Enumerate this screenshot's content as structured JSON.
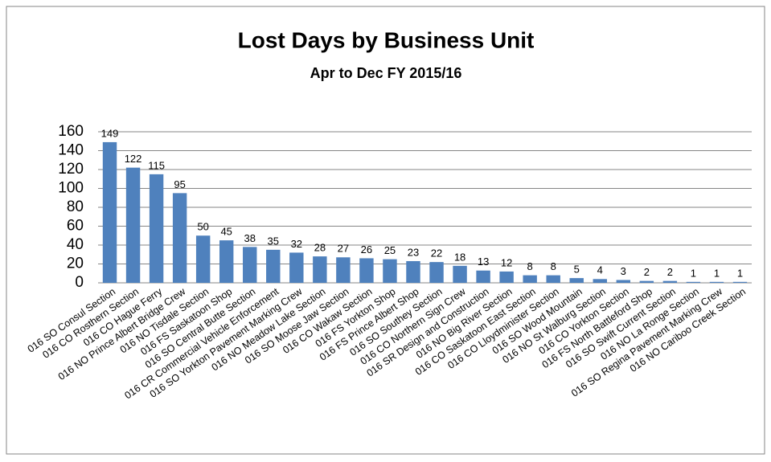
{
  "chart_data": {
    "type": "bar",
    "title": "Lost Days by Business Unit",
    "subtitle": "Apr to Dec FY 2015/16",
    "categories": [
      "016 SO Consul Section",
      "016 CO Rosthern Section",
      "016 CO Hague Ferry",
      "016 NO Prince Albert Bridge Crew",
      "016 NO Tisdale Section",
      "016 FS Saskatoon Shop",
      "016 SO Central Butte Section",
      "016 CR Commercial Vehicle Enforcement",
      "016 SO Yorkton Pavement Marking Crew",
      "016 NO Meadow Lake Section",
      "016 SO Moose Jaw Section",
      "016 CO Wakaw Section",
      "016 FS Yorkton Shop",
      "016 FS Prince Albert Shop",
      "016 SO Southey Section",
      "016 CO Northern Sign Crew",
      "016 SR Design and Construction",
      "016 NO Big River Section",
      "016 CO Saskatoon East Section",
      "016 CO Lloydminister Section",
      "016 SO Wood Mountain",
      "016 NO St Walburg Section",
      "016 CO Yorkton Section",
      "016 FS North Battleford Shop",
      "016 SO Swift Current Section",
      "016 NO La Ronge Section",
      "016 SO Regina Pavement Marking Crew",
      "016 NO Cariboo Creek Section"
    ],
    "values": [
      149,
      122,
      115,
      95,
      50,
      45,
      38,
      35,
      32,
      28,
      27,
      26,
      25,
      23,
      22,
      18,
      13,
      12,
      8,
      8,
      5,
      4,
      3,
      2,
      2,
      1,
      1,
      1
    ],
    "color": "#4f81bd",
    "ylim": [
      0,
      160
    ],
    "yticks": [
      0,
      20,
      40,
      60,
      80,
      100,
      120,
      140,
      160
    ],
    "grid": true
  }
}
